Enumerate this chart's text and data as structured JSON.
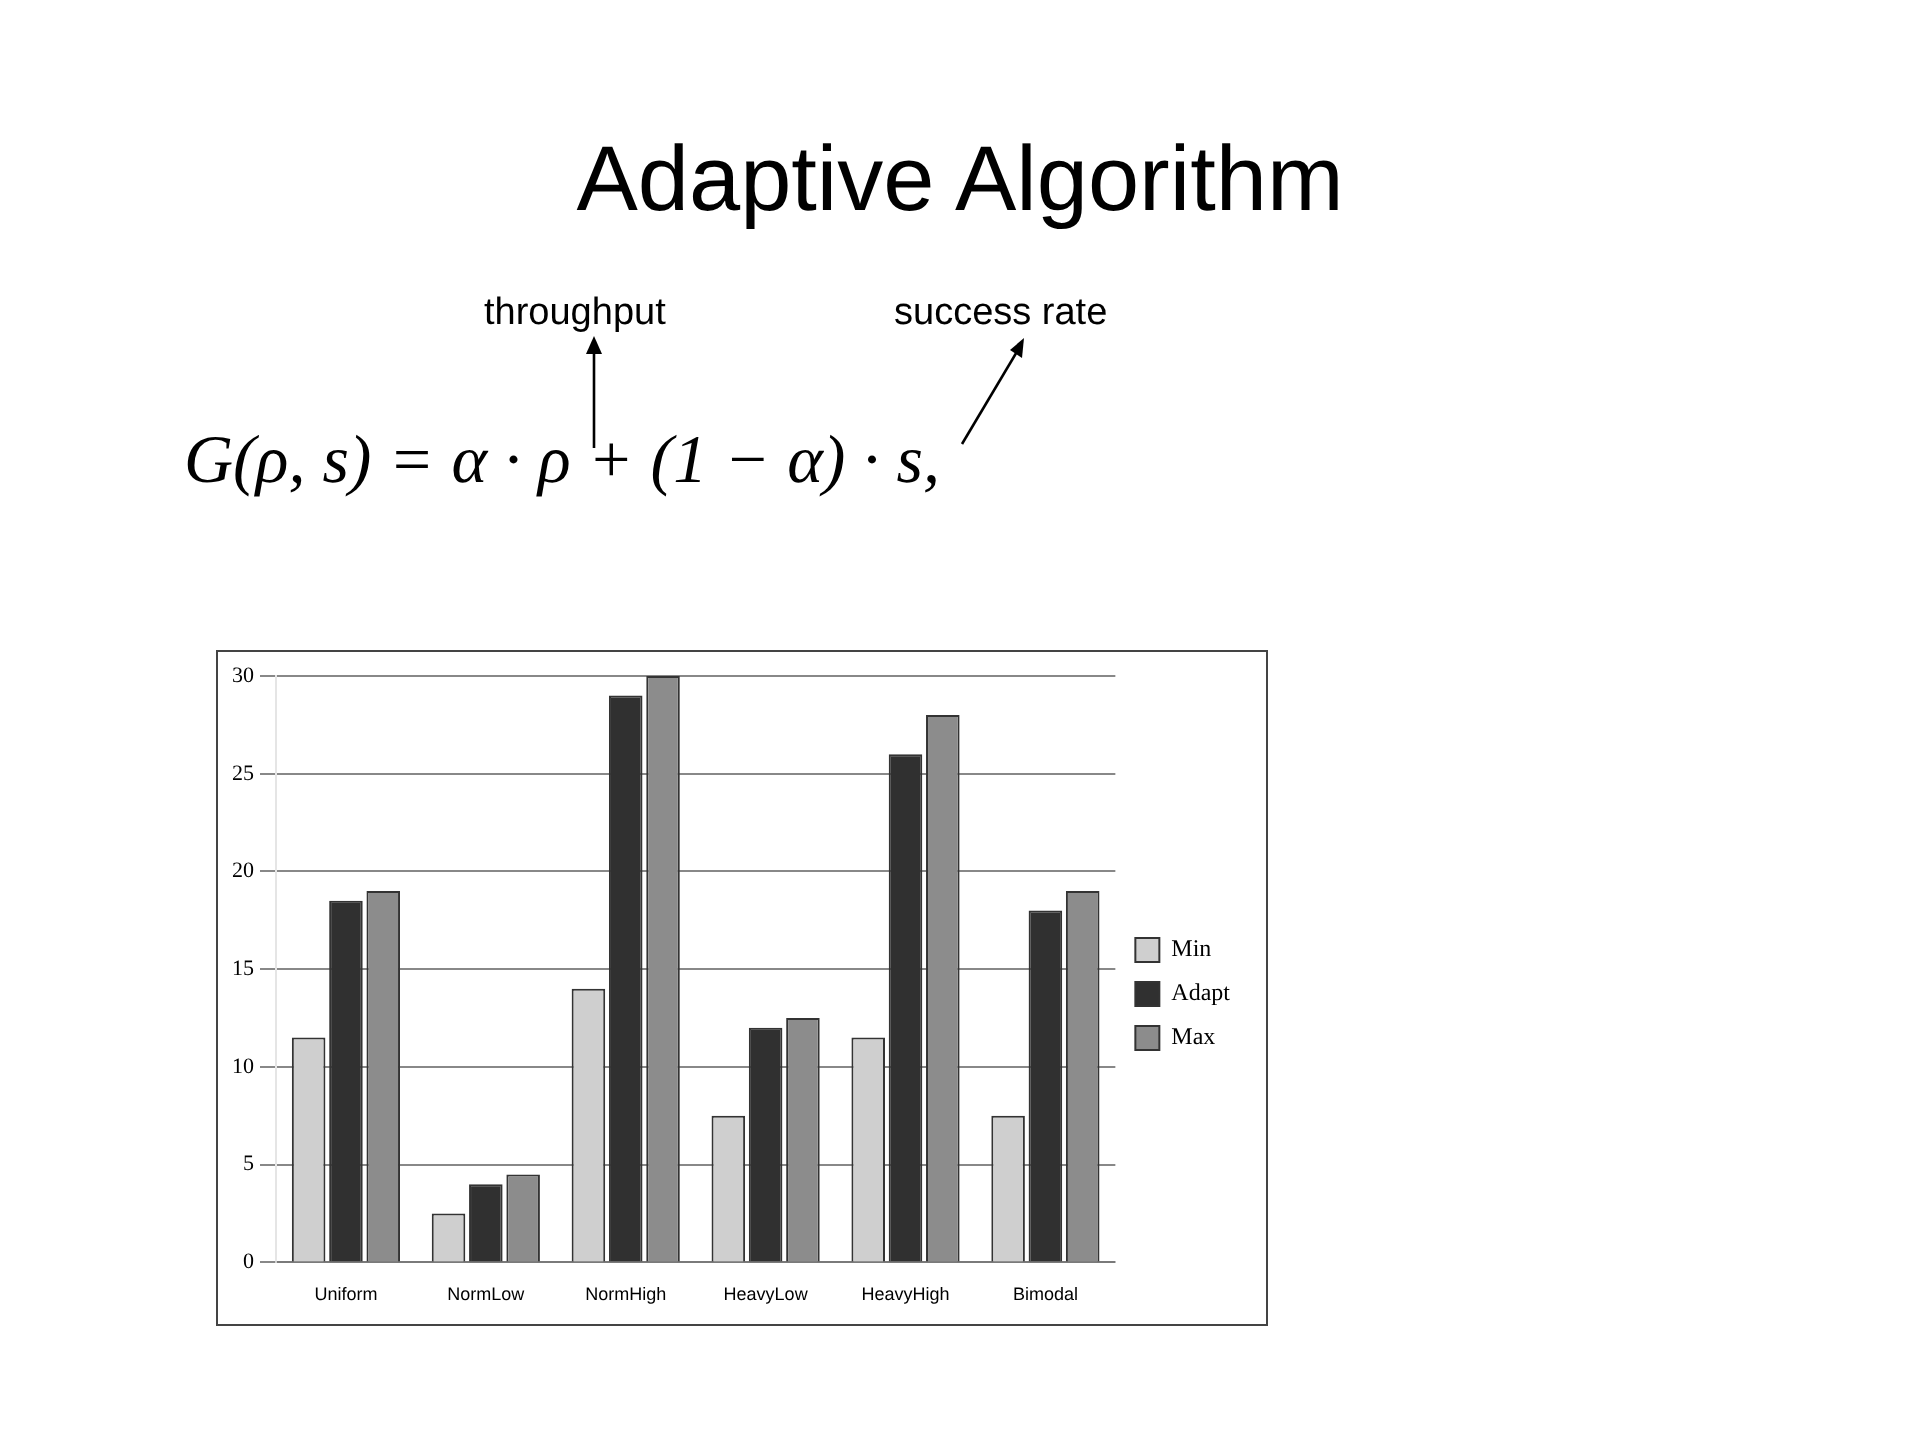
{
  "chart_data": {
    "type": "bar",
    "title": "Adaptive Algorithm",
    "annotations": [
      "throughput",
      "success rate",
      "G(ρ, s) = α · ρ + (1 − α) · s,"
    ],
    "categories": [
      "Uniform",
      "NormLow",
      "NormHigh",
      "HeavyLow",
      "HeavyHigh",
      "Bimodal"
    ],
    "series": [
      {
        "name": "Min",
        "color": "#cfcfcf",
        "values": [
          11.5,
          2.5,
          14,
          7.5,
          11.5,
          7.5
        ]
      },
      {
        "name": "Adapt",
        "color": "#303030",
        "values": [
          18.5,
          4,
          29,
          12,
          26,
          18
        ]
      },
      {
        "name": "Max",
        "color": "#8c8c8c",
        "values": [
          19,
          4.5,
          30,
          12.5,
          28,
          19
        ]
      }
    ],
    "ylim": [
      0,
      30
    ],
    "yticks": [
      0,
      5,
      10,
      15,
      20,
      25,
      30
    ],
    "grid": "y",
    "legend": "right"
  }
}
